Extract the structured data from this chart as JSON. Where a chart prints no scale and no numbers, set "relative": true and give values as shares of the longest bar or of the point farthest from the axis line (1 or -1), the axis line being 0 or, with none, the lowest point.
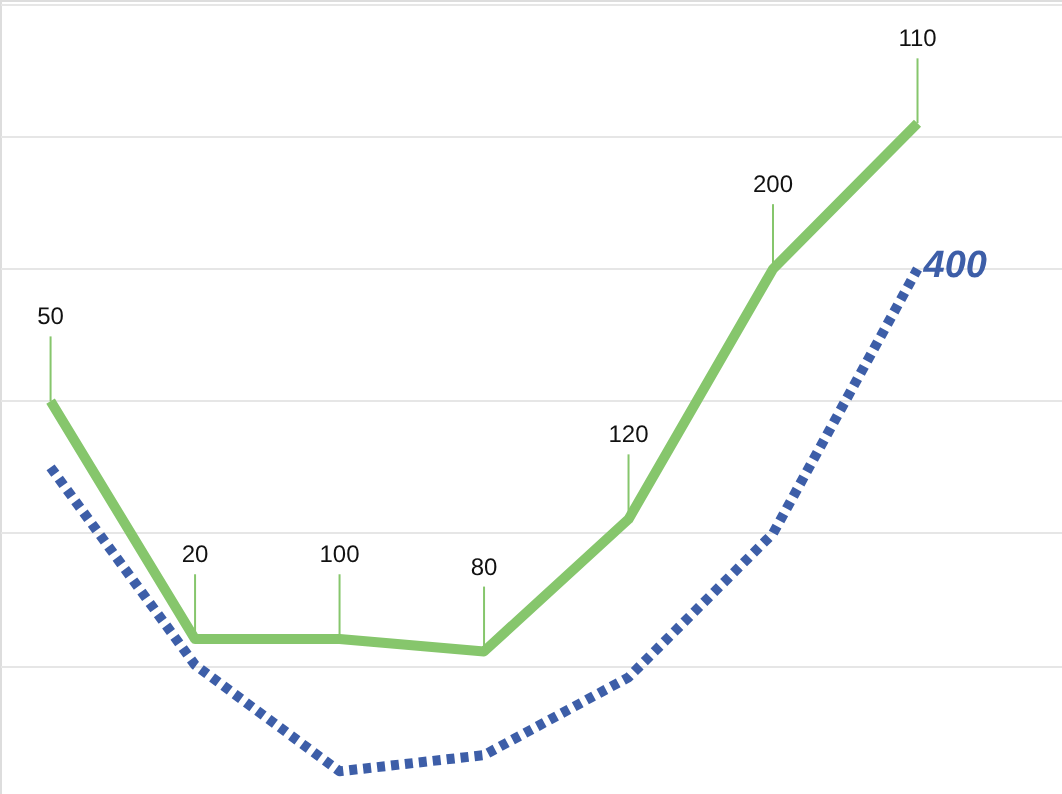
{
  "chart_data": {
    "type": "line",
    "relative": true,
    "grid": "y",
    "legend": false,
    "marker": "none",
    "categories": [
      null,
      null,
      null,
      null,
      null,
      null,
      null
    ],
    "series": [
      {
        "color": "#86c66c",
        "line_style": "solid",
        "values": [
          0.571,
          0.204,
          0.204,
          0.185,
          0.389,
          0.775,
          1
        ]
      },
      {
        "color": "#3d5ea8",
        "line_style": "dotted",
        "values": [
          0.469,
          0.164,
          0,
          0.025,
          0.145,
          0.367,
          0.775
        ]
      }
    ],
    "annotations": [
      {
        "text": "50",
        "y": 0.571
      },
      {
        "text": "20",
        "y": 0.204
      },
      {
        "text": "100",
        "y": 0.204
      },
      {
        "text": "80",
        "y": 0.185
      },
      {
        "text": "120",
        "y": 0.389
      },
      {
        "text": "200",
        "y": 0.775
      },
      {
        "text": "110",
        "y": 1
      },
      "400"
    ]
  }
}
